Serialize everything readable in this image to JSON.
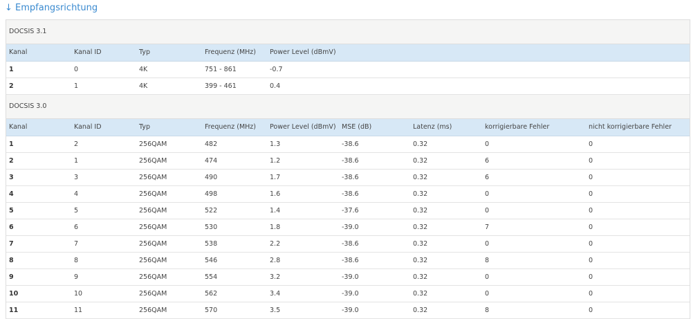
{
  "header": {
    "title": "↓ Empfangsrichtung"
  },
  "sections": [
    {
      "title": "DOCSIS 3.1",
      "columns": [
        "Kanal",
        "Kanal ID",
        "Typ",
        "Frequenz (MHz)",
        "Power Level (dBmV)"
      ],
      "rows": [
        [
          "1",
          "0",
          "4K",
          "751 - 861",
          "-0.7"
        ],
        [
          "2",
          "1",
          "4K",
          "399 - 461",
          "0.4"
        ]
      ]
    },
    {
      "title": "DOCSIS 3.0",
      "columns": [
        "Kanal",
        "Kanal ID",
        "Typ",
        "Frequenz (MHz)",
        "Power Level (dBmV)",
        "MSE (dB)",
        "Latenz (ms)",
        "korrigierbare Fehler",
        "nicht korrigierbare Fehler"
      ],
      "rows": [
        [
          "1",
          "2",
          "256QAM",
          "482",
          "1.3",
          "-38.6",
          "0.32",
          "0",
          "0"
        ],
        [
          "2",
          "1",
          "256QAM",
          "474",
          "1.2",
          "-38.6",
          "0.32",
          "6",
          "0"
        ],
        [
          "3",
          "3",
          "256QAM",
          "490",
          "1.7",
          "-38.6",
          "0.32",
          "6",
          "0"
        ],
        [
          "4",
          "4",
          "256QAM",
          "498",
          "1.6",
          "-38.6",
          "0.32",
          "0",
          "0"
        ],
        [
          "5",
          "5",
          "256QAM",
          "522",
          "1.4",
          "-37.6",
          "0.32",
          "0",
          "0"
        ],
        [
          "6",
          "6",
          "256QAM",
          "530",
          "1.8",
          "-39.0",
          "0.32",
          "7",
          "0"
        ],
        [
          "7",
          "7",
          "256QAM",
          "538",
          "2.2",
          "-38.6",
          "0.32",
          "0",
          "0"
        ],
        [
          "8",
          "8",
          "256QAM",
          "546",
          "2.8",
          "-38.6",
          "0.32",
          "8",
          "0"
        ],
        [
          "9",
          "9",
          "256QAM",
          "554",
          "3.2",
          "-39.0",
          "0.32",
          "0",
          "0"
        ],
        [
          "10",
          "10",
          "256QAM",
          "562",
          "3.4",
          "-39.0",
          "0.32",
          "0",
          "0"
        ],
        [
          "11",
          "11",
          "256QAM",
          "570",
          "3.5",
          "-39.0",
          "0.32",
          "8",
          "0"
        ]
      ]
    }
  ]
}
